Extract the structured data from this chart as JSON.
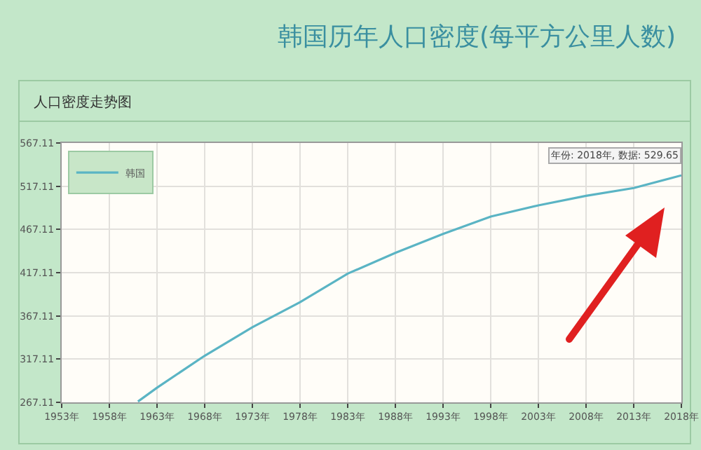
{
  "chart_data": {
    "type": "line",
    "title": "韩国历年人口密度(每平方公里人数)",
    "subtitle": "人口密度走势图",
    "x": [
      1961,
      1963,
      1968,
      1973,
      1978,
      1983,
      1988,
      1993,
      1998,
      2003,
      2008,
      2013,
      2018
    ],
    "series": [
      {
        "name": "韩国",
        "color": "#5ab4c4",
        "values": [
          268,
          284,
          321,
          354,
          383,
          416,
          440,
          462,
          482,
          495,
          506,
          515,
          529.65
        ]
      }
    ],
    "xlim": [
      1953,
      2018
    ],
    "xticks": [
      {
        "value": 1953,
        "label": "1953年"
      },
      {
        "value": 1958,
        "label": "1958年"
      },
      {
        "value": 1963,
        "label": "1963年"
      },
      {
        "value": 1968,
        "label": "1968年"
      },
      {
        "value": 1973,
        "label": "1973年"
      },
      {
        "value": 1978,
        "label": "1978年"
      },
      {
        "value": 1983,
        "label": "1983年"
      },
      {
        "value": 1988,
        "label": "1988年"
      },
      {
        "value": 1993,
        "label": "1993年"
      },
      {
        "value": 1998,
        "label": "1998年"
      },
      {
        "value": 2003,
        "label": "2003年"
      },
      {
        "value": 2008,
        "label": "2008年"
      },
      {
        "value": 2013,
        "label": "2013年"
      },
      {
        "value": 2018,
        "label": "2018年"
      }
    ],
    "ylim": [
      267.11,
      567.11
    ],
    "yticks": [
      267.11,
      317.11,
      367.11,
      417.11,
      467.11,
      517.11,
      567.11
    ],
    "annotations": [
      {
        "text": "年份: 2018年, 数据: 529.65",
        "x": 2018,
        "y": 529.65
      }
    ],
    "grid": true,
    "legend": "top left",
    "marker": "none",
    "line_style": "solid"
  }
}
